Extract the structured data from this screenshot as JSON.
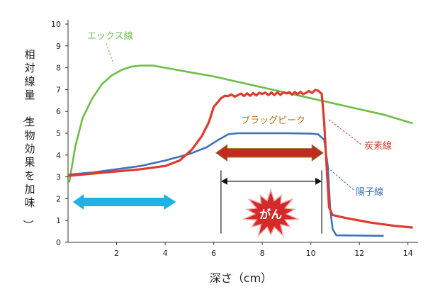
{
  "chart_data": {
    "type": "line",
    "xlabel": "深さ（cm）",
    "ylabel": "相対線量（生物効果を加味）",
    "xlim": [
      0,
      14.3
    ],
    "ylim": [
      0,
      10
    ],
    "x_ticks": [
      2,
      4,
      6,
      8,
      10,
      12,
      14
    ],
    "y_ticks": [
      0,
      1,
      2,
      3,
      4,
      5,
      6,
      7,
      8,
      9,
      10
    ],
    "grid": false,
    "series": [
      {
        "name": "エックス線",
        "color": "#6cbe45",
        "points": [
          [
            0.05,
            2.75
          ],
          [
            0.3,
            4.4
          ],
          [
            0.6,
            5.7
          ],
          [
            1.0,
            6.6
          ],
          [
            1.4,
            7.25
          ],
          [
            1.8,
            7.65
          ],
          [
            2.2,
            7.9
          ],
          [
            2.6,
            8.05
          ],
          [
            3.0,
            8.1
          ],
          [
            3.5,
            8.1
          ],
          [
            4.0,
            8.0
          ],
          [
            5.0,
            7.8
          ],
          [
            6.0,
            7.6
          ],
          [
            7.0,
            7.35
          ],
          [
            8.0,
            7.1
          ],
          [
            9.0,
            6.85
          ],
          [
            10.0,
            6.6
          ],
          [
            11.0,
            6.35
          ],
          [
            12.0,
            6.1
          ],
          [
            13.0,
            5.85
          ],
          [
            14.2,
            5.45
          ]
        ]
      },
      {
        "name": "陽子線",
        "color": "#3f72b8",
        "points": [
          [
            0,
            3.1
          ],
          [
            1,
            3.2
          ],
          [
            2,
            3.35
          ],
          [
            3,
            3.5
          ],
          [
            4,
            3.75
          ],
          [
            5,
            4.05
          ],
          [
            5.7,
            4.35
          ],
          [
            6.2,
            4.7
          ],
          [
            6.6,
            4.95
          ],
          [
            7.0,
            5.0
          ],
          [
            8.0,
            5.0
          ],
          [
            9.0,
            5.0
          ],
          [
            10.0,
            4.98
          ],
          [
            10.3,
            4.95
          ],
          [
            10.55,
            4.7
          ],
          [
            10.7,
            3.5
          ],
          [
            10.8,
            1.5
          ],
          [
            10.9,
            0.6
          ],
          [
            11.05,
            0.32
          ],
          [
            13.0,
            0.3
          ]
        ]
      },
      {
        "name": "炭素線",
        "color": "#e03a2e",
        "points": [
          [
            0,
            3.05
          ],
          [
            1,
            3.15
          ],
          [
            2,
            3.25
          ],
          [
            3,
            3.35
          ],
          [
            4,
            3.5
          ],
          [
            4.6,
            3.75
          ],
          [
            5.1,
            4.25
          ],
          [
            5.5,
            4.85
          ],
          [
            5.8,
            5.5
          ],
          [
            6.0,
            6.2
          ],
          [
            6.3,
            6.6
          ],
          [
            6.6,
            6.7
          ],
          [
            7.0,
            6.75
          ],
          [
            8.0,
            6.8
          ],
          [
            9.0,
            6.82
          ],
          [
            9.8,
            6.85
          ],
          [
            10.3,
            6.95
          ],
          [
            10.45,
            6.8
          ],
          [
            10.55,
            5.5
          ],
          [
            10.65,
            3.5
          ],
          [
            10.75,
            1.6
          ],
          [
            10.9,
            1.25
          ],
          [
            11.5,
            1.1
          ],
          [
            12.5,
            0.9
          ],
          [
            13.5,
            0.75
          ],
          [
            14.2,
            0.68
          ]
        ]
      }
    ],
    "annotations": {
      "bragg_peak_label": "ブラッグピーク",
      "cancer_label": "がん"
    }
  }
}
